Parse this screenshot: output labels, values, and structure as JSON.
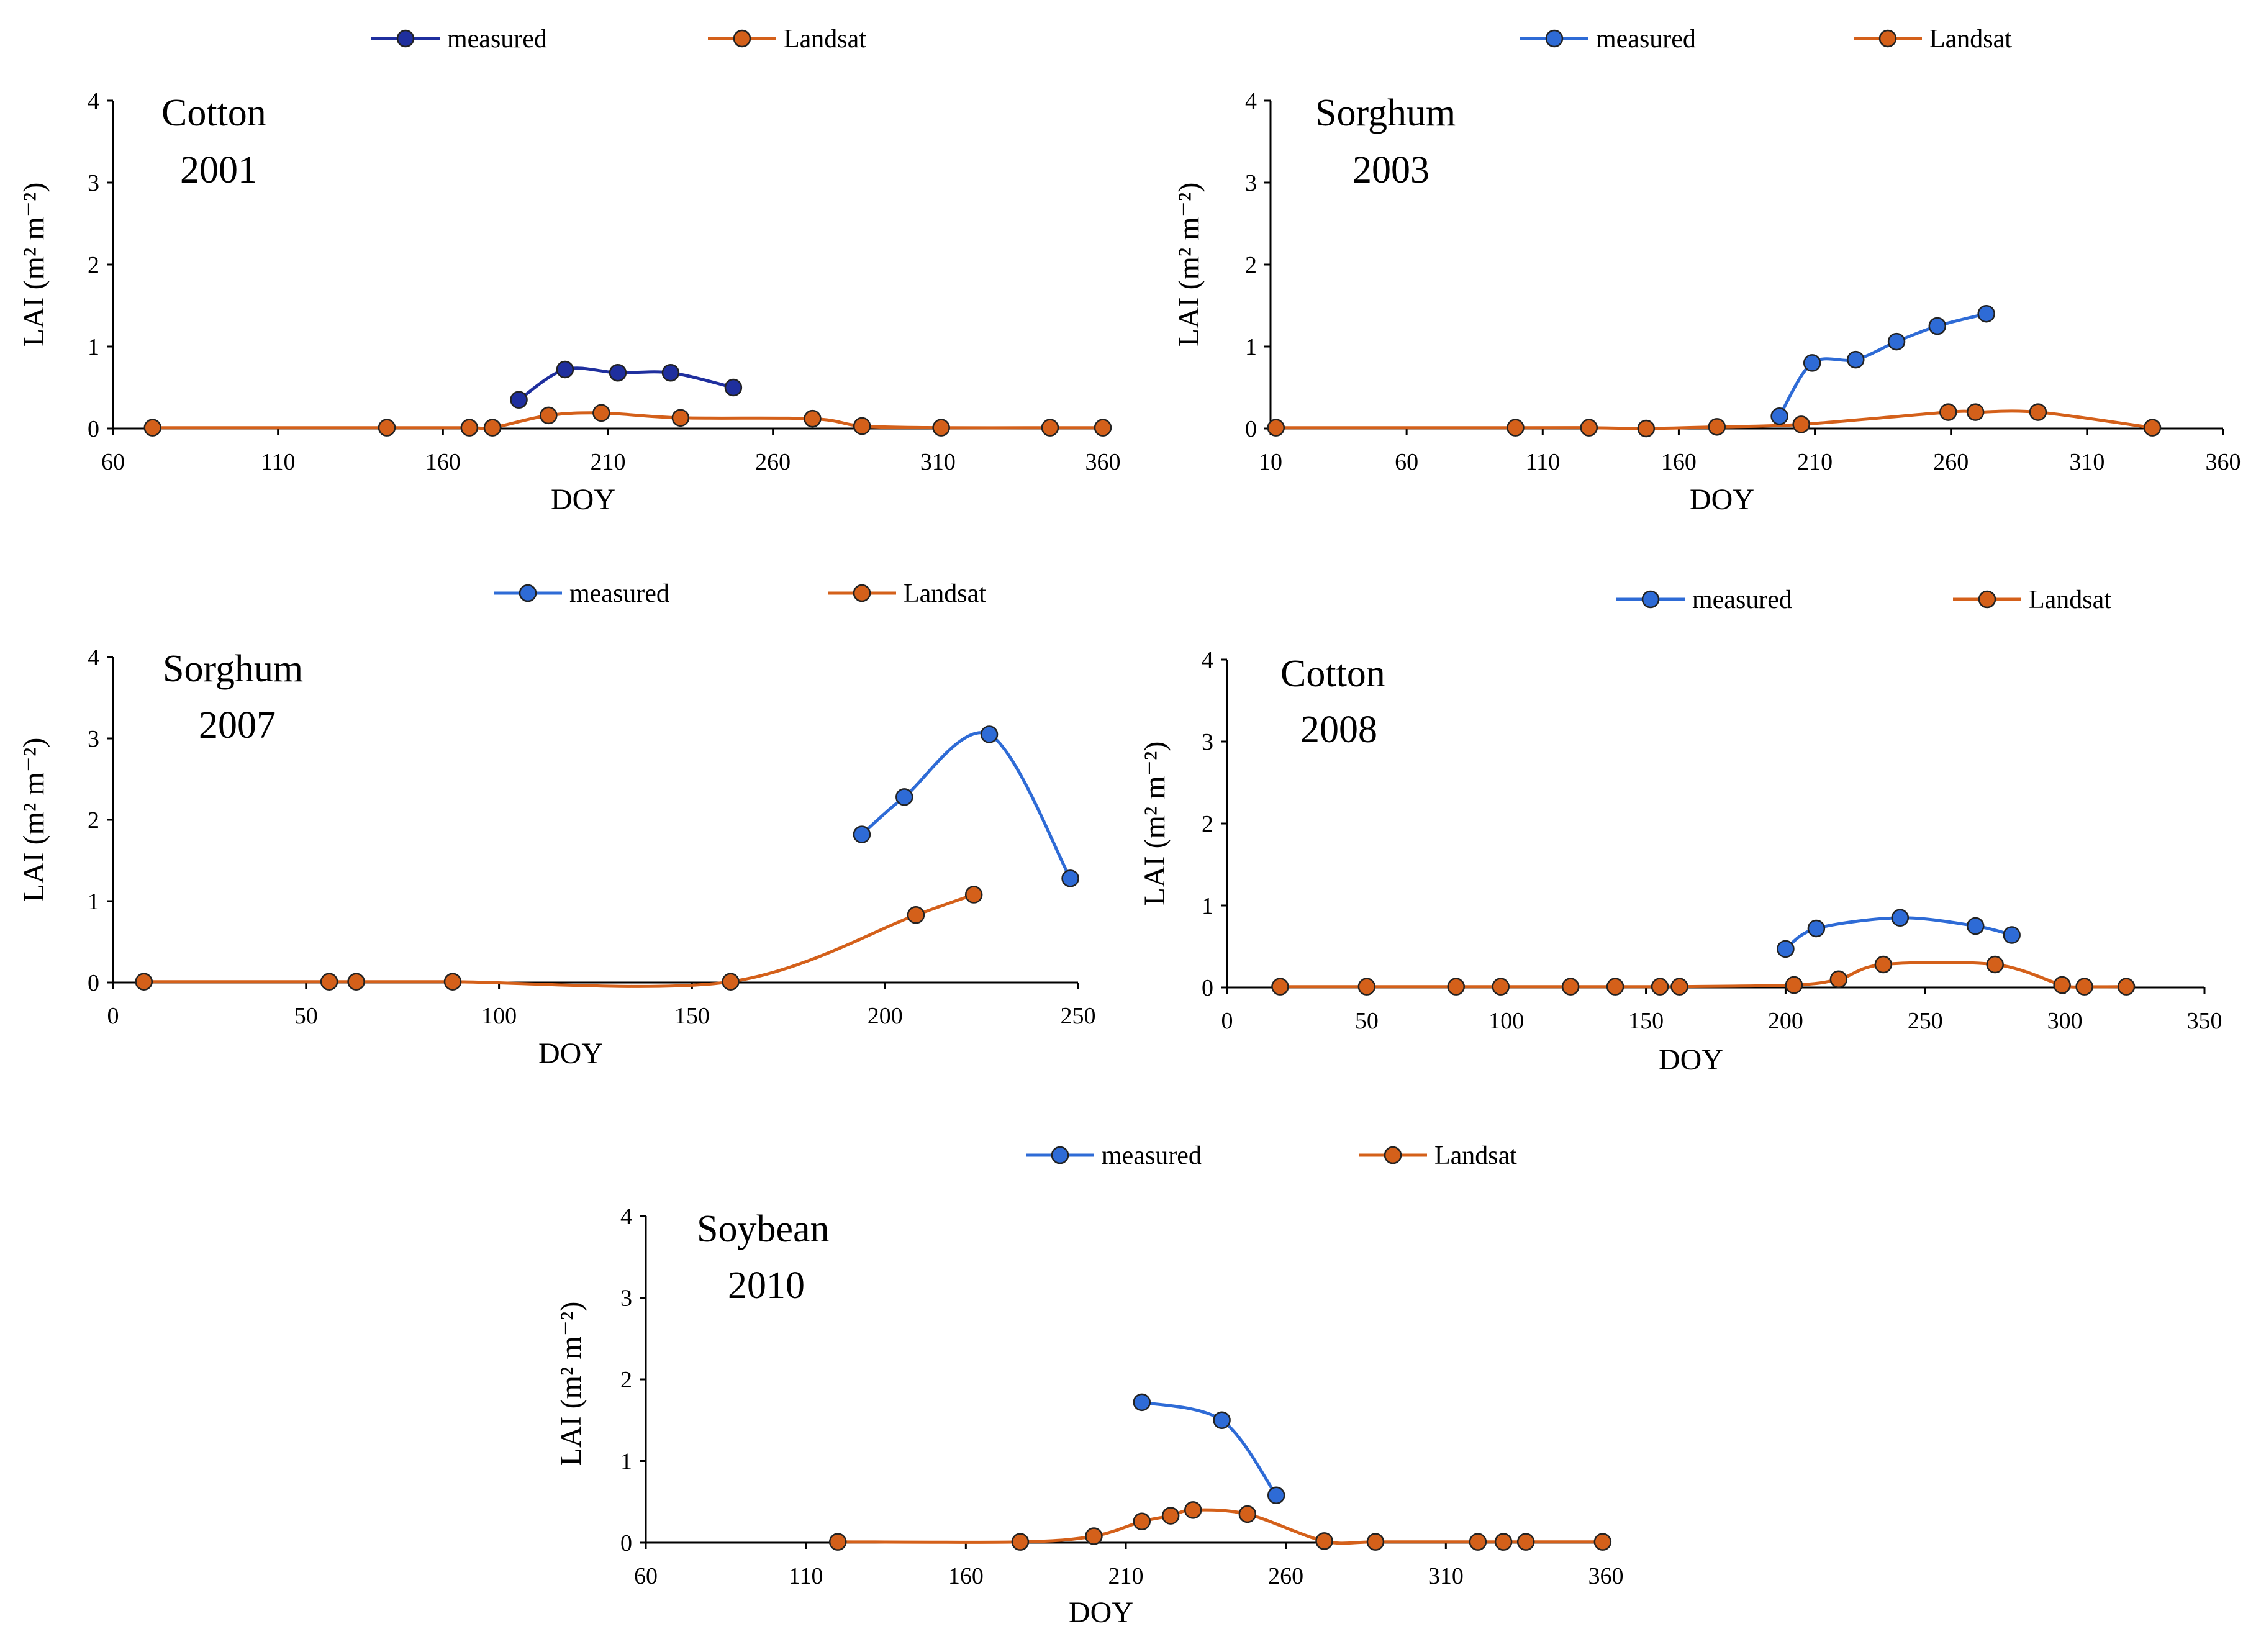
{
  "colors": {
    "measured": "#2E6BD6",
    "measured_p1": "#1F2F9E",
    "landsat": "#D4601A",
    "axis": "#000000"
  },
  "legend": {
    "measured": "measured",
    "landsat": "Landsat"
  },
  "chart_data": [
    {
      "type": "line",
      "title": "Cotton",
      "year": "2001",
      "xlabel": "DOY",
      "ylabel": "LAI (m² m⁻²)",
      "xlim": [
        60,
        360
      ],
      "ylim": [
        0,
        4
      ],
      "xticks": [
        60,
        110,
        160,
        210,
        260,
        310,
        360
      ],
      "yticks": [
        0,
        1,
        2,
        3,
        4
      ],
      "series": [
        {
          "name": "measured",
          "x": [
            183,
            197,
            213,
            229,
            248
          ],
          "y": [
            0.35,
            0.72,
            0.68,
            0.68,
            0.5
          ]
        },
        {
          "name": "Landsat",
          "x": [
            72,
            143,
            168,
            175,
            192,
            208,
            232,
            272,
            287,
            311,
            344,
            360
          ],
          "y": [
            0.01,
            0.01,
            0.01,
            0.01,
            0.16,
            0.19,
            0.13,
            0.12,
            0.03,
            0.01,
            0.01,
            0.01
          ]
        }
      ]
    },
    {
      "type": "line",
      "title": "Sorghum",
      "year": "2003",
      "xlabel": "DOY",
      "ylabel": "LAI (m² m⁻²)",
      "xlim": [
        10,
        360
      ],
      "ylim": [
        0,
        4
      ],
      "xticks": [
        10,
        60,
        110,
        160,
        210,
        260,
        310,
        360
      ],
      "yticks": [
        0,
        1,
        2,
        3,
        4
      ],
      "series": [
        {
          "name": "measured",
          "x": [
            197,
            209,
            225,
            240,
            255,
            273
          ],
          "y": [
            0.15,
            0.8,
            0.84,
            1.06,
            1.25,
            1.4
          ]
        },
        {
          "name": "Landsat",
          "x": [
            12,
            100,
            127,
            148,
            174,
            205,
            259,
            269,
            292,
            334
          ],
          "y": [
            0.01,
            0.01,
            0.01,
            0.0,
            0.02,
            0.05,
            0.2,
            0.2,
            0.2,
            0.01
          ]
        }
      ]
    },
    {
      "type": "line",
      "title": "Sorghum",
      "year": "2007",
      "xlabel": "DOY",
      "ylabel": "LAI (m² m⁻²)",
      "xlim": [
        0,
        250
      ],
      "ylim": [
        0,
        4
      ],
      "xticks": [
        0,
        50,
        100,
        150,
        200,
        250
      ],
      "yticks": [
        0,
        1,
        2,
        3,
        4
      ],
      "series": [
        {
          "name": "measured",
          "x": [
            194,
            205,
            227,
            248
          ],
          "y": [
            1.82,
            2.28,
            3.05,
            1.28
          ]
        },
        {
          "name": "Landsat",
          "x": [
            8,
            56,
            63,
            88,
            160,
            208,
            223
          ],
          "y": [
            0.01,
            0.01,
            0.01,
            0.01,
            0.01,
            0.83,
            1.08
          ]
        }
      ]
    },
    {
      "type": "line",
      "title": "Cotton",
      "year": "2008",
      "xlabel": "DOY",
      "ylabel": "LAI (m² m⁻²)",
      "xlim": [
        0,
        350
      ],
      "ylim": [
        0,
        4
      ],
      "xticks": [
        0,
        50,
        100,
        150,
        200,
        250,
        300,
        350
      ],
      "yticks": [
        0,
        1,
        2,
        3,
        4
      ],
      "series": [
        {
          "name": "measured",
          "x": [
            200,
            211,
            241,
            268,
            281
          ],
          "y": [
            0.47,
            0.72,
            0.85,
            0.75,
            0.64
          ]
        },
        {
          "name": "Landsat",
          "x": [
            19,
            50,
            82,
            98,
            123,
            139,
            155,
            162,
            203,
            219,
            235,
            275,
            299,
            307,
            322
          ],
          "y": [
            0.01,
            0.01,
            0.01,
            0.01,
            0.01,
            0.01,
            0.01,
            0.01,
            0.03,
            0.1,
            0.28,
            0.28,
            0.03,
            0.01,
            0.01
          ]
        }
      ]
    },
    {
      "type": "line",
      "title": "Soybean",
      "year": "2010",
      "xlabel": "DOY",
      "ylabel": "LAI (m² m⁻²)",
      "xlim": [
        60,
        360
      ],
      "ylim": [
        0,
        4
      ],
      "xticks": [
        60,
        110,
        160,
        210,
        260,
        310,
        360
      ],
      "yticks": [
        0,
        1,
        2,
        3,
        4
      ],
      "series": [
        {
          "name": "measured",
          "x": [
            215,
            240,
            257
          ],
          "y": [
            1.72,
            1.5,
            0.58
          ]
        },
        {
          "name": "Landsat",
          "x": [
            120,
            177,
            200,
            215,
            224,
            231,
            248,
            272,
            288,
            320,
            328,
            335,
            359
          ],
          "y": [
            0.01,
            0.01,
            0.08,
            0.26,
            0.33,
            0.4,
            0.35,
            0.02,
            0.01,
            0.01,
            0.01,
            0.01,
            0.01
          ]
        }
      ]
    }
  ]
}
